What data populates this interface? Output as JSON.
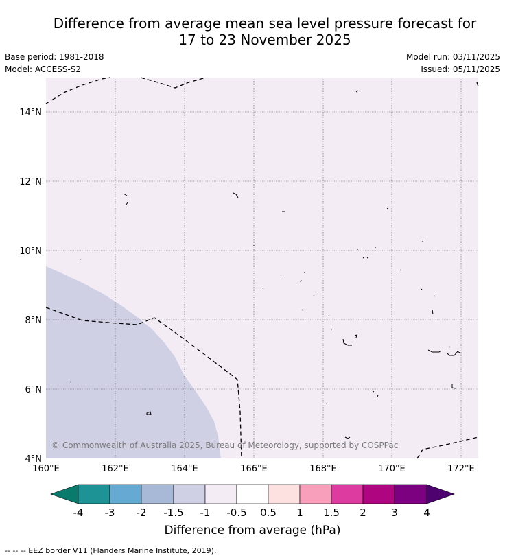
{
  "title": {
    "line1": "Difference from average mean sea level pressure forecast for",
    "line2": "17 to 23 November 2025"
  },
  "meta": {
    "base_period": "Base period: 1981-2018",
    "model": "Model: ACCESS-S2",
    "model_run": "Model run: 03/11/2025",
    "issued": "Issued: 05/11/2025"
  },
  "map": {
    "lat_labels": [
      "14°N",
      "12°N",
      "10°N",
      "8°N",
      "6°N",
      "4°N"
    ],
    "lon_labels": [
      "160°E",
      "162°E",
      "164°E",
      "166°E",
      "168°E",
      "170°E",
      "172°E"
    ],
    "background_class_color": "#f3ecf5",
    "negative_class_color": "#d0d0e4",
    "copyright": "© Commonwealth of Australia 2025, Bureau of Meteorology, supported by COSPPac"
  },
  "colorbar": {
    "label": "Difference from average (hPa)",
    "ticks": [
      "-4",
      "-3",
      "-2",
      "-1.5",
      "-1",
      "-0.5",
      "0.5",
      "1",
      "1.5",
      "2",
      "3",
      "4"
    ],
    "colors": [
      "#0a7a6c",
      "#1e9396",
      "#66aad4",
      "#a7b9d7",
      "#d0d0e4",
      "#f3ecf5",
      "#ffffff",
      "#fde1e1",
      "#f79fbb",
      "#dd3ba0",
      "#b00581",
      "#7c0181",
      "#4d0270"
    ]
  },
  "footer": "--  --  -- EEZ border V11 (Flanders Marine Institute, 2019)."
}
